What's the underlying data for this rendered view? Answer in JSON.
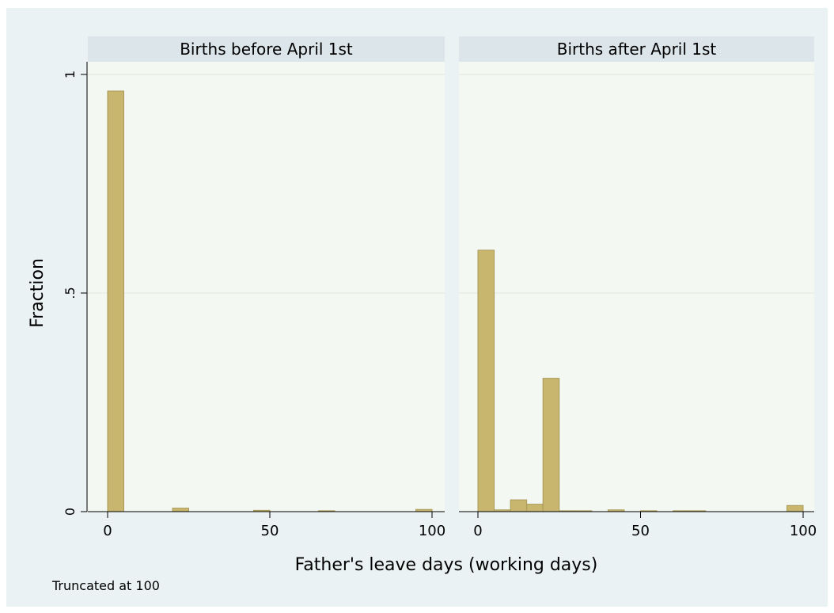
{
  "chart_data": {
    "type": "bar",
    "ylabel": "Fraction",
    "xlabel": "Father's leave days (working days)",
    "note": "Truncated at 100",
    "ylim": [
      0,
      1
    ],
    "xlim": [
      0,
      100
    ],
    "yticks": [
      {
        "value": 0,
        "label": "0"
      },
      {
        "value": 0.5,
        "label": ".5"
      },
      {
        "value": 1,
        "label": "1"
      }
    ],
    "xticks": [
      {
        "value": 0,
        "label": "0"
      },
      {
        "value": 50,
        "label": "50"
      },
      {
        "value": 100,
        "label": "100"
      }
    ],
    "bin_width": 5,
    "bar_color": "#c8b66e",
    "bar_outline": "#a99a58",
    "background": "#eaf2f3",
    "plot_background": "#f4f8f2",
    "strip_color": "#dce6ea",
    "panels": [
      {
        "title": "Births before April 1st",
        "bars": [
          {
            "x": 0,
            "value": 0.962
          },
          {
            "x": 20,
            "value": 0.008
          },
          {
            "x": 45,
            "value": 0.003
          },
          {
            "x": 65,
            "value": 0.002
          },
          {
            "x": 95,
            "value": 0.005
          }
        ]
      },
      {
        "title": "Births after April 1st",
        "bars": [
          {
            "x": 0,
            "value": 0.598
          },
          {
            "x": 5,
            "value": 0.004
          },
          {
            "x": 10,
            "value": 0.027
          },
          {
            "x": 15,
            "value": 0.017
          },
          {
            "x": 20,
            "value": 0.305
          },
          {
            "x": 25,
            "value": 0.002
          },
          {
            "x": 30,
            "value": 0.002
          },
          {
            "x": 40,
            "value": 0.004
          },
          {
            "x": 50,
            "value": 0.002
          },
          {
            "x": 60,
            "value": 0.002
          },
          {
            "x": 65,
            "value": 0.002
          },
          {
            "x": 95,
            "value": 0.014
          }
        ]
      }
    ]
  }
}
